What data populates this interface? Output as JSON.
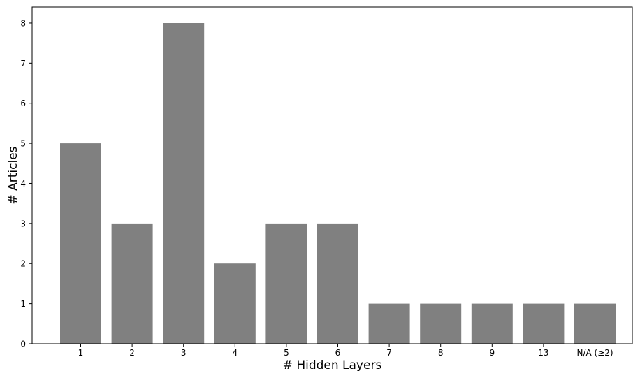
{
  "chart_data": {
    "type": "bar",
    "title": "",
    "xlabel": "# Hidden Layers",
    "ylabel": "# Articles",
    "categories": [
      "1",
      "2",
      "3",
      "4",
      "5",
      "6",
      "7",
      "8",
      "9",
      "13",
      "N/A (≥2)"
    ],
    "values": [
      5,
      3,
      8,
      2,
      3,
      3,
      1,
      1,
      1,
      1,
      1
    ],
    "ylim": [
      0,
      8.4
    ],
    "yticks": [
      0,
      1,
      2,
      3,
      4,
      5,
      6,
      7,
      8
    ],
    "grid": false,
    "legend": "none",
    "colors": {
      "bar": "#808080",
      "axis": "#000000"
    }
  }
}
